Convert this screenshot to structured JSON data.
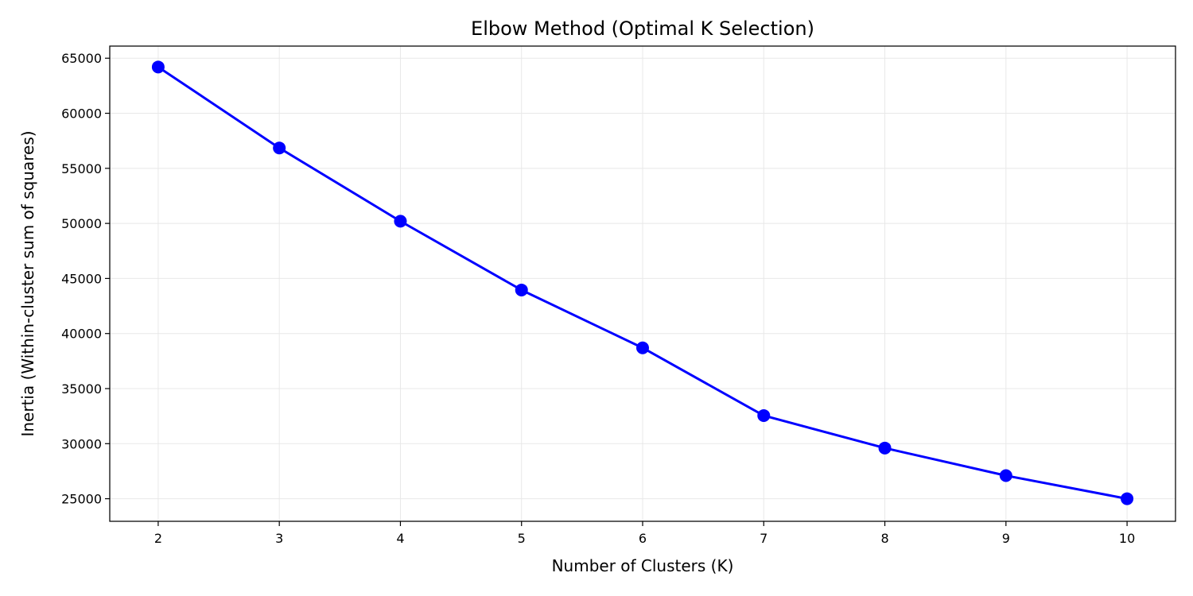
{
  "chart_data": {
    "type": "line",
    "title": "Elbow Method (Optimal K Selection)",
    "xlabel": "Number of Clusters (K)",
    "ylabel": "Inertia (Within-cluster sum of squares)",
    "x": [
      2,
      3,
      4,
      5,
      6,
      7,
      8,
      9,
      10
    ],
    "series": [
      {
        "values": [
          64200,
          56850,
          50200,
          43950,
          38700,
          32550,
          29600,
          27100,
          25000
        ],
        "color": "#0000ff",
        "marker": "circle"
      }
    ],
    "xticks": [
      "2",
      "3",
      "4",
      "5",
      "6",
      "7",
      "8",
      "9",
      "10"
    ],
    "yticks": [
      "25000",
      "30000",
      "35000",
      "40000",
      "45000",
      "50000",
      "55000",
      "60000",
      "65000"
    ],
    "xlim": [
      1.6,
      10.4
    ],
    "ylim": [
      22950,
      66100
    ],
    "grid": true,
    "grid_color": "#e8e8e8",
    "legend": false
  }
}
